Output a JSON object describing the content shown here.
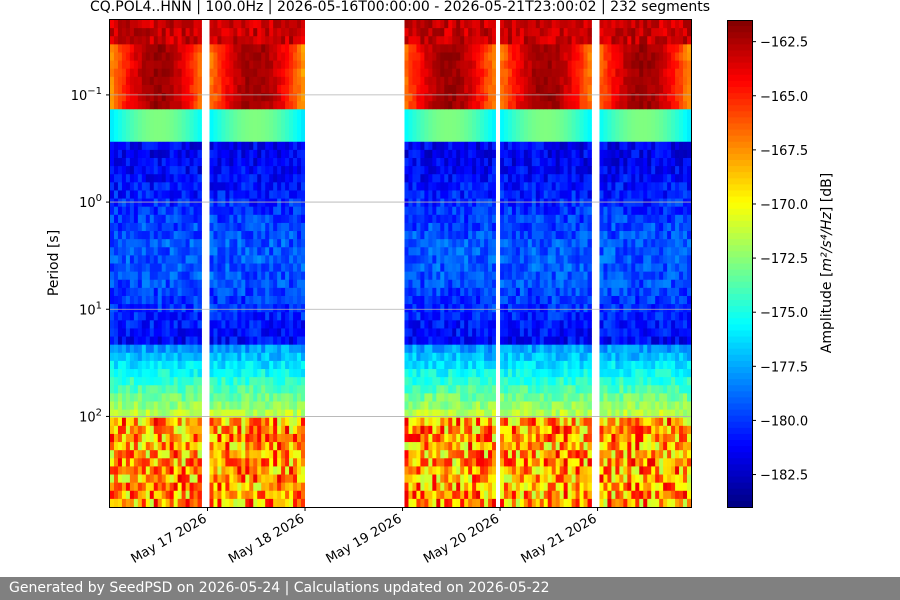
{
  "chart_data": {
    "type": "heatmap",
    "title": "CQ.POL4..HNN | 100.0Hz | 2026-05-16T00:00:00 - 2026-05-21T23:00:02 | 232 segments",
    "ylabel": "Period [s]",
    "colorbar_label_parts": {
      "prefix": "Amplitude [",
      "unit": "m²/s⁴/Hz",
      "suffix": "] [dB]"
    },
    "y_scale": "log",
    "y_inverted": true,
    "ylim": [
      0.02,
      700
    ],
    "y_ticks": [
      {
        "value": 0.1,
        "base": "10",
        "exp": "−1"
      },
      {
        "value": 1,
        "base": "10",
        "exp": "0"
      },
      {
        "value": 10,
        "base": "10",
        "exp": "1"
      },
      {
        "value": 100,
        "base": "10",
        "exp": "2"
      }
    ],
    "x_range": [
      "2026-05-16T00:00:00",
      "2026-05-21T23:00:02"
    ],
    "x_ticks": [
      {
        "date": "2026-05-17",
        "label": "May 17 2026"
      },
      {
        "date": "2026-05-18",
        "label": "May 18 2026"
      },
      {
        "date": "2026-05-19",
        "label": "May 19 2026"
      },
      {
        "date": "2026-05-20",
        "label": "May 20 2026"
      },
      {
        "date": "2026-05-21",
        "label": "May 21 2026"
      }
    ],
    "data_gaps": [
      [
        "2026-05-16T23:00:00",
        "2026-05-17T00:00:00"
      ],
      [
        "2026-05-18T00:00:00",
        "2026-05-19T00:00:00"
      ],
      [
        "2026-05-19T23:00:00",
        "2026-05-20T00:00:00"
      ],
      [
        "2026-05-20T23:00:00",
        "2026-05-21T00:00:00"
      ]
    ],
    "colorbar": {
      "colormap": "jet",
      "vmin": -184,
      "vmax": -161.5,
      "ticks": [
        -162.5,
        -165.0,
        -167.5,
        -170.0,
        -172.5,
        -175.0,
        -177.5,
        -180.0,
        -182.5
      ],
      "tick_labels": [
        "−162.5",
        "−165.0",
        "−167.5",
        "−170.0",
        "−172.5",
        "−175.0",
        "−177.5",
        "−180.0",
        "−182.5"
      ]
    },
    "grid": true
  },
  "footer": {
    "text": "Generated by SeedPSD on 2026-05-24 | Calculations updated on 2026-05-22"
  }
}
